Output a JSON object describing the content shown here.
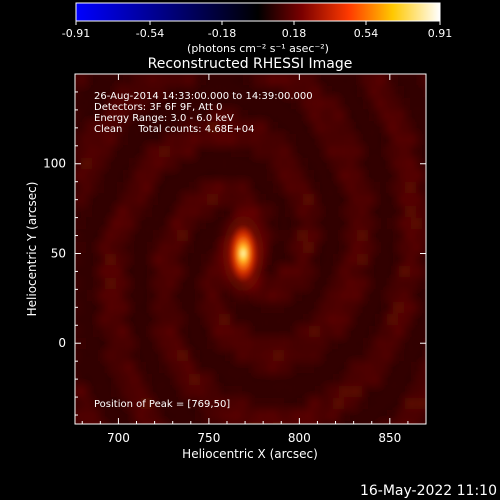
{
  "colorbar": {
    "ticks": [
      "-0.91",
      "-0.54",
      "-0.18",
      "0.18",
      "0.54",
      "0.91"
    ],
    "unit_label": "(photons cm⁻² s⁻¹ asec⁻²)",
    "range": [
      -0.91,
      0.91
    ],
    "colors": [
      "#0000ff",
      "#000000",
      "#7a0000",
      "#ff3a00",
      "#ffc800",
      "#ffffff"
    ]
  },
  "chart_data": {
    "type": "heatmap",
    "title": "Reconstructed RHESSI Image",
    "xlabel": "Heliocentric X (arcsec)",
    "ylabel": "Heliocentric Y (arcsec)",
    "xlim": [
      676,
      870
    ],
    "ylim": [
      -45,
      150
    ],
    "xticks": [
      "700",
      "750",
      "800",
      "850"
    ],
    "xtick_values": [
      700,
      750,
      800,
      850
    ],
    "yticks": [
      "0",
      "50",
      "100"
    ],
    "ytick_values": [
      0,
      50,
      100
    ],
    "info_lines": [
      "26-Aug-2014 14:33:00.000 to 14:39:00.000",
      "Detectors: 3F 6F 9F, Att 0",
      "Energy Range: 3.0 - 6.0 keV",
      "Clean     Total counts: 4.68E+04"
    ],
    "peak_label": "Position of Peak = [769,50]",
    "peak": {
      "x": 769,
      "y": 50,
      "value": 0.91
    },
    "source_sigma_arcsec": {
      "x": 3.5,
      "y": 7.5
    }
  },
  "footer": {
    "timestamp": "16-May-2022 11:10"
  }
}
